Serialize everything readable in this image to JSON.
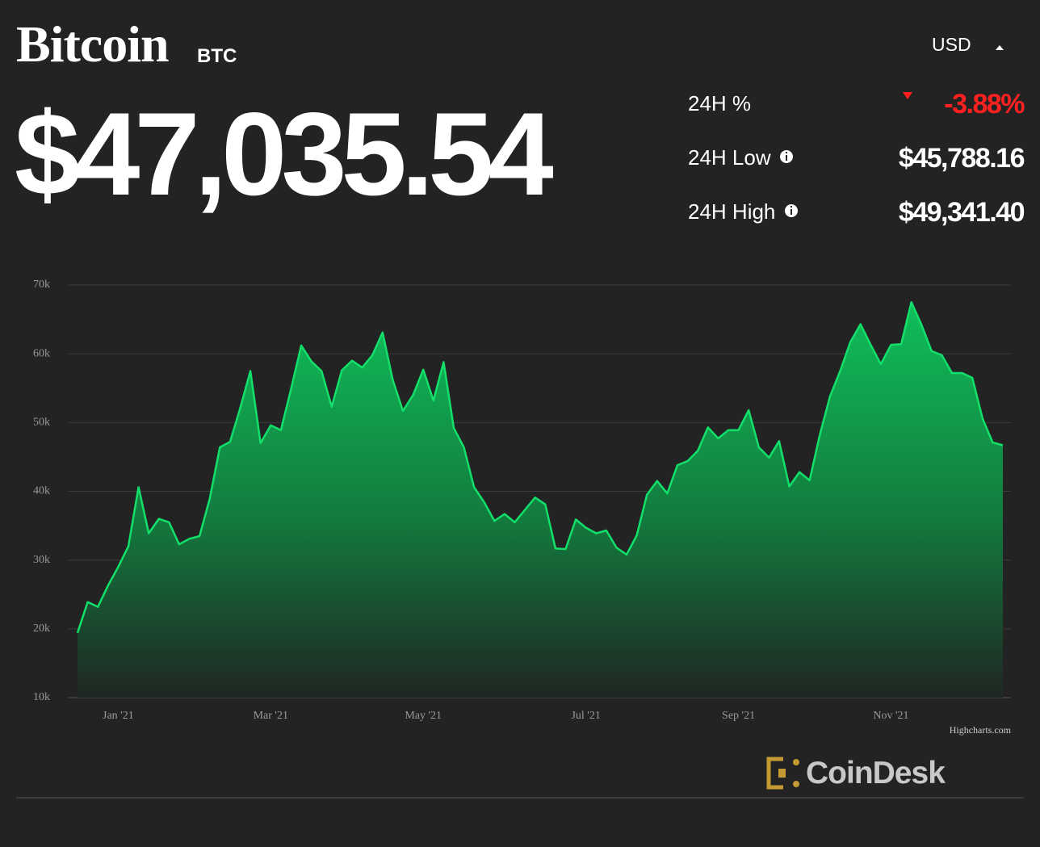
{
  "header": {
    "title": "Bitcoin",
    "symbol": "BTC",
    "price": "$47,035.54",
    "currency": "USD",
    "stats": [
      {
        "label": "24H %",
        "value": "-3.88%"
      },
      {
        "label": "24H Low",
        "value": "$45,788.16"
      },
      {
        "label": "24H High",
        "value": "$49,341.40"
      }
    ]
  },
  "chart_data": {
    "type": "area",
    "categories": [
      null,
      null,
      null,
      null,
      "Jan '21",
      null,
      null,
      null,
      null,
      null,
      null,
      null,
      null,
      null,
      null,
      null,
      null,
      null,
      null,
      "Mar '21",
      null,
      null,
      null,
      null,
      null,
      null,
      null,
      null,
      null,
      null,
      null,
      null,
      null,
      null,
      "May '21",
      null,
      null,
      null,
      null,
      null,
      null,
      null,
      null,
      null,
      null,
      null,
      null,
      null,
      null,
      null,
      "Jul '21",
      null,
      null,
      null,
      null,
      null,
      null,
      null,
      null,
      null,
      null,
      null,
      null,
      null,
      null,
      "Sep '21",
      null,
      null,
      null,
      null,
      null,
      null,
      null,
      null,
      null,
      null,
      null,
      null,
      null,
      null,
      "Nov '21",
      null,
      null,
      null,
      null,
      null,
      null,
      null,
      null,
      null,
      null,
      null
    ],
    "series": [
      {
        "name": "BTC",
        "color": "#12e06a",
        "values": [
          19400,
          23900,
          23200,
          26300,
          29000,
          32000,
          40600,
          33900,
          36000,
          35500,
          32300,
          33100,
          33500,
          38900,
          46400,
          47200,
          52100,
          57500,
          47000,
          49600,
          48900,
          54900,
          61200,
          58900,
          57500,
          52300,
          57600,
          59000,
          58000,
          59800,
          63100,
          56200,
          51700,
          54000,
          57700,
          53200,
          58800,
          49200,
          46400,
          40600,
          38400,
          35700,
          36700,
          35500,
          37300,
          39100,
          38100,
          31700,
          31600,
          35900,
          34700,
          33900,
          34300,
          31800,
          30800,
          33600,
          39500,
          41500,
          39700,
          43800,
          44400,
          45900,
          49300,
          47700,
          48900,
          48900,
          51800,
          46400,
          44900,
          47300,
          40700,
          42800,
          41600,
          48200,
          53800,
          57500,
          61700,
          64300,
          61300,
          58500,
          61300,
          61400,
          67500,
          64200,
          60400,
          59800,
          57200,
          57200,
          56500,
          50600,
          47100,
          46700
        ]
      }
    ],
    "ylim": [
      10000,
      70000
    ],
    "yticks": [
      {
        "value": 10000,
        "label": "10k"
      },
      {
        "value": 20000,
        "label": "20k"
      },
      {
        "value": 30000,
        "label": "30k"
      },
      {
        "value": 40000,
        "label": "40k"
      },
      {
        "value": 50000,
        "label": "50k"
      },
      {
        "value": 60000,
        "label": "60k"
      },
      {
        "value": 70000,
        "label": "70k"
      }
    ],
    "grid": true,
    "credits": "Highcharts.com"
  },
  "footer": {
    "brand": "CoinDesk"
  }
}
